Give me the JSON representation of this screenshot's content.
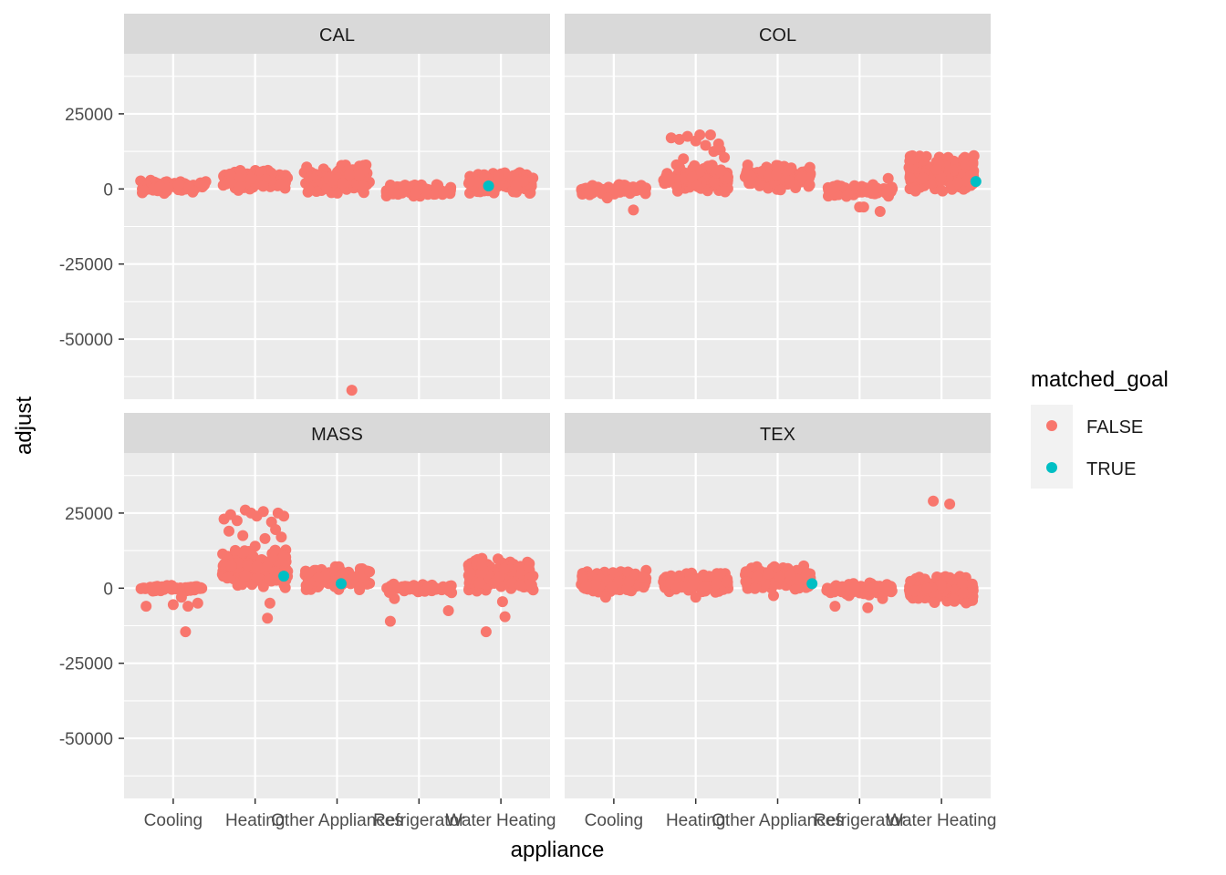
{
  "chart_data": {
    "type": "scatter",
    "xlabel": "appliance",
    "ylabel": "adjust",
    "categories": [
      "Cooling",
      "Heating",
      "Other Appliances",
      "Refrigerator",
      "Water Heating"
    ],
    "yticks": [
      25000,
      0,
      -25000,
      -50000
    ],
    "ylim": [
      -70000,
      45000
    ],
    "grid": true,
    "layout": "facet_wrap 2x2",
    "legend": {
      "title": "matched_goal",
      "position": "right",
      "entries": [
        {
          "label": "FALSE",
          "color": "#F8766D"
        },
        {
          "label": "TRUE",
          "color": "#00BFC4"
        }
      ]
    },
    "colors": {
      "FALSE": "#F8766D",
      "TRUE": "#00BFC4",
      "panel_bg": "#EBEBEB",
      "strip_bg": "#D9D9D9",
      "grid": "#FFFFFF"
    },
    "panels": [
      {
        "title": "CAL",
        "groups": [
          {
            "category": "Cooling",
            "ymin": -1500,
            "ymax": 3000,
            "count": 70
          },
          {
            "category": "Heating",
            "ymin": -500,
            "ymax": 6500,
            "count": 130
          },
          {
            "category": "Other Appliances",
            "ymin": -1500,
            "ymax": 8000,
            "count": 130
          },
          {
            "category": "Refrigerator",
            "ymin": -2500,
            "ymax": 1500,
            "count": 70
          },
          {
            "category": "Water Heating",
            "ymin": -1500,
            "ymax": 5500,
            "count": 150
          }
        ],
        "points": [
          {
            "category": "Other Appliances",
            "offset": 0.18,
            "y": -67000,
            "matched": false
          },
          {
            "category": "Water Heating",
            "offset": -0.15,
            "y": 1000,
            "matched": true
          }
        ]
      },
      {
        "title": "COL",
        "groups": [
          {
            "category": "Cooling",
            "ymin": -2000,
            "ymax": 1500,
            "count": 70
          },
          {
            "category": "Heating",
            "ymin": -1000,
            "ymax": 8000,
            "count": 140
          },
          {
            "category": "Other Appliances",
            "ymin": -500,
            "ymax": 8000,
            "count": 120
          },
          {
            "category": "Refrigerator",
            "ymin": -2500,
            "ymax": 1500,
            "count": 70
          },
          {
            "category": "Water Heating",
            "ymin": -1000,
            "ymax": 11500,
            "count": 190
          }
        ],
        "points": [
          {
            "category": "Cooling",
            "offset": 0.24,
            "y": -7000,
            "matched": false
          },
          {
            "category": "Cooling",
            "offset": -0.08,
            "y": -3000,
            "matched": false
          },
          {
            "category": "Heating",
            "offset": -0.3,
            "y": 17000,
            "matched": false
          },
          {
            "category": "Heating",
            "offset": -0.2,
            "y": 16500,
            "matched": false
          },
          {
            "category": "Heating",
            "offset": -0.1,
            "y": 17500,
            "matched": false
          },
          {
            "category": "Heating",
            "offset": 0.0,
            "y": 16000,
            "matched": false
          },
          {
            "category": "Heating",
            "offset": 0.05,
            "y": 18000,
            "matched": false
          },
          {
            "category": "Heating",
            "offset": 0.12,
            "y": 14500,
            "matched": false
          },
          {
            "category": "Heating",
            "offset": 0.18,
            "y": 18000,
            "matched": false
          },
          {
            "category": "Heating",
            "offset": 0.22,
            "y": 12500,
            "matched": false
          },
          {
            "category": "Heating",
            "offset": 0.28,
            "y": 15000,
            "matched": false
          },
          {
            "category": "Heating",
            "offset": 0.3,
            "y": 13000,
            "matched": false
          },
          {
            "category": "Heating",
            "offset": 0.35,
            "y": 10500,
            "matched": false
          },
          {
            "category": "Heating",
            "offset": -0.15,
            "y": 10000,
            "matched": false
          },
          {
            "category": "Refrigerator",
            "offset": 0.0,
            "y": -6000,
            "matched": false
          },
          {
            "category": "Refrigerator",
            "offset": 0.05,
            "y": -6000,
            "matched": false
          },
          {
            "category": "Refrigerator",
            "offset": 0.25,
            "y": -7500,
            "matched": false
          },
          {
            "category": "Refrigerator",
            "offset": 0.35,
            "y": 3500,
            "matched": false
          },
          {
            "category": "Water Heating",
            "offset": 0.42,
            "y": 2500,
            "matched": true
          }
        ]
      },
      {
        "title": "MASS",
        "groups": [
          {
            "category": "Cooling",
            "ymin": -1000,
            "ymax": 1000,
            "count": 70
          },
          {
            "category": "Heating",
            "ymin": 0,
            "ymax": 13000,
            "count": 190
          },
          {
            "category": "Other Appliances",
            "ymin": -500,
            "ymax": 7500,
            "count": 120
          },
          {
            "category": "Refrigerator",
            "ymin": -1500,
            "ymax": 1500,
            "count": 70
          },
          {
            "category": "Water Heating",
            "ymin": -1000,
            "ymax": 10000,
            "count": 190
          }
        ],
        "points": [
          {
            "category": "Cooling",
            "offset": -0.33,
            "y": -6000,
            "matched": false
          },
          {
            "category": "Cooling",
            "offset": 0.0,
            "y": -5500,
            "matched": false
          },
          {
            "category": "Cooling",
            "offset": 0.15,
            "y": -14500,
            "matched": false
          },
          {
            "category": "Cooling",
            "offset": 0.18,
            "y": -6000,
            "matched": false
          },
          {
            "category": "Cooling",
            "offset": 0.3,
            "y": -5000,
            "matched": false
          },
          {
            "category": "Cooling",
            "offset": 0.1,
            "y": -3000,
            "matched": false
          },
          {
            "category": "Heating",
            "offset": -0.38,
            "y": 23000,
            "matched": false
          },
          {
            "category": "Heating",
            "offset": -0.3,
            "y": 24500,
            "matched": false
          },
          {
            "category": "Heating",
            "offset": -0.22,
            "y": 22500,
            "matched": false
          },
          {
            "category": "Heating",
            "offset": -0.12,
            "y": 26000,
            "matched": false
          },
          {
            "category": "Heating",
            "offset": -0.05,
            "y": 25000,
            "matched": false
          },
          {
            "category": "Heating",
            "offset": 0.02,
            "y": 24000,
            "matched": false
          },
          {
            "category": "Heating",
            "offset": 0.1,
            "y": 25500,
            "matched": false
          },
          {
            "category": "Heating",
            "offset": 0.2,
            "y": 22000,
            "matched": false
          },
          {
            "category": "Heating",
            "offset": 0.28,
            "y": 25000,
            "matched": false
          },
          {
            "category": "Heating",
            "offset": 0.35,
            "y": 24000,
            "matched": false
          },
          {
            "category": "Heating",
            "offset": -0.32,
            "y": 19000,
            "matched": false
          },
          {
            "category": "Heating",
            "offset": -0.15,
            "y": 17500,
            "matched": false
          },
          {
            "category": "Heating",
            "offset": 0.0,
            "y": 14000,
            "matched": false
          },
          {
            "category": "Heating",
            "offset": 0.12,
            "y": 16500,
            "matched": false
          },
          {
            "category": "Heating",
            "offset": 0.25,
            "y": 19500,
            "matched": false
          },
          {
            "category": "Heating",
            "offset": 0.32,
            "y": 17000,
            "matched": false
          },
          {
            "category": "Heating",
            "offset": 0.18,
            "y": -5000,
            "matched": false
          },
          {
            "category": "Heating",
            "offset": 0.15,
            "y": -10000,
            "matched": false
          },
          {
            "category": "Heating",
            "offset": 0.35,
            "y": 4000,
            "matched": true
          },
          {
            "category": "Other Appliances",
            "offset": 0.05,
            "y": 1500,
            "matched": true
          },
          {
            "category": "Refrigerator",
            "offset": -0.35,
            "y": -11000,
            "matched": false
          },
          {
            "category": "Refrigerator",
            "offset": -0.3,
            "y": -3500,
            "matched": false
          },
          {
            "category": "Refrigerator",
            "offset": 0.36,
            "y": -7500,
            "matched": false
          },
          {
            "category": "Water Heating",
            "offset": -0.18,
            "y": -14500,
            "matched": false
          },
          {
            "category": "Water Heating",
            "offset": 0.05,
            "y": -9500,
            "matched": false
          },
          {
            "category": "Water Heating",
            "offset": 0.02,
            "y": -4500,
            "matched": false
          }
        ]
      },
      {
        "title": "TEX",
        "groups": [
          {
            "category": "Cooling",
            "ymin": -1500,
            "ymax": 6000,
            "count": 140
          },
          {
            "category": "Heating",
            "ymin": -1500,
            "ymax": 5000,
            "count": 130
          },
          {
            "category": "Other Appliances",
            "ymin": -500,
            "ymax": 7500,
            "count": 150
          },
          {
            "category": "Refrigerator",
            "ymin": -2500,
            "ymax": 2000,
            "count": 90
          },
          {
            "category": "Water Heating",
            "ymin": -5000,
            "ymax": 4000,
            "count": 190
          }
        ],
        "points": [
          {
            "category": "Cooling",
            "offset": -0.1,
            "y": -3000,
            "matched": false
          },
          {
            "category": "Heating",
            "offset": 0.0,
            "y": -3000,
            "matched": false
          },
          {
            "category": "Other Appliances",
            "offset": -0.05,
            "y": -2500,
            "matched": false
          },
          {
            "category": "Other Appliances",
            "offset": 0.42,
            "y": 1500,
            "matched": true
          },
          {
            "category": "Refrigerator",
            "offset": -0.3,
            "y": -6000,
            "matched": false
          },
          {
            "category": "Refrigerator",
            "offset": 0.1,
            "y": -6500,
            "matched": false
          },
          {
            "category": "Refrigerator",
            "offset": 0.28,
            "y": -3500,
            "matched": false
          },
          {
            "category": "Water Heating",
            "offset": -0.1,
            "y": 29000,
            "matched": false
          },
          {
            "category": "Water Heating",
            "offset": 0.1,
            "y": 28000,
            "matched": false
          }
        ]
      }
    ]
  }
}
